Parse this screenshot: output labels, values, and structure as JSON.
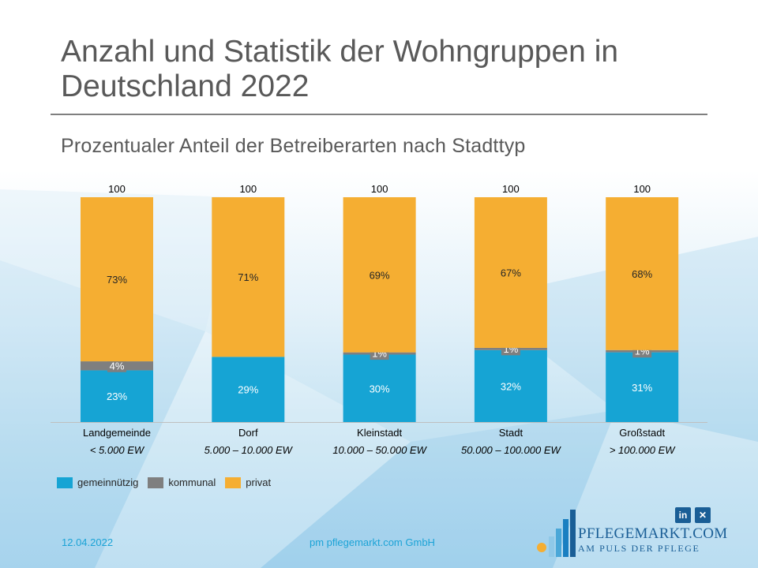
{
  "slide": {
    "title": "Anzahl und Statistik der Wohngruppen in Deutschland 2022",
    "subtitle": "Prozentualer Anteil der Betreiberarten nach Stadttyp",
    "date": "12.04.2022",
    "footer": "pm pflegemarkt.com GmbH"
  },
  "branding": {
    "logo_name": "PFLEGEMARKT.COM",
    "logo_tagline": "AM PULS DER PFLEGE",
    "social": [
      {
        "name": "linkedin-icon",
        "glyph": "in"
      },
      {
        "name": "xing-icon",
        "glyph": "✕"
      }
    ]
  },
  "colors": {
    "gemeinnuetzig": "#16a4d4",
    "kommunal": "#7f7f7f",
    "privat": "#f5ae32",
    "text": "#595959",
    "accent": "#1ba3d6",
    "brand": "#1a5e96"
  },
  "chart_data": {
    "type": "bar",
    "stacked": true,
    "title": "Prozentualer Anteil der Betreiberarten nach Stadttyp",
    "categories": [
      "Landgemeinde",
      "Dorf",
      "Kleinstadt",
      "Stadt",
      "Großstadt"
    ],
    "sub_labels": [
      "< 5.000 EW",
      "5.000 – 10.000 EW",
      "10.000 – 50.000 EW",
      "50.000 – 100.000 EW",
      "> 100.000 EW"
    ],
    "totals": [
      "100",
      "100",
      "100",
      "100",
      "100"
    ],
    "series": [
      {
        "name": "gemeinnützig",
        "values": [
          23,
          29,
          30,
          32,
          31
        ],
        "labels": [
          "23%",
          "29%",
          "30%",
          "32%",
          "31%"
        ]
      },
      {
        "name": "kommunal",
        "values": [
          4,
          0,
          1,
          1,
          1
        ],
        "labels": [
          "4%",
          "",
          "1%",
          "1%",
          "1%"
        ]
      },
      {
        "name": "privat",
        "values": [
          73,
          71,
          69,
          67,
          68
        ],
        "labels": [
          "73%",
          "71%",
          "69%",
          "67%",
          "68%"
        ]
      }
    ],
    "legend": [
      "gemeinnützig",
      "kommunal",
      "privat"
    ],
    "legend_position": "bottom-left",
    "ylim": [
      0,
      100
    ],
    "grid": false
  }
}
